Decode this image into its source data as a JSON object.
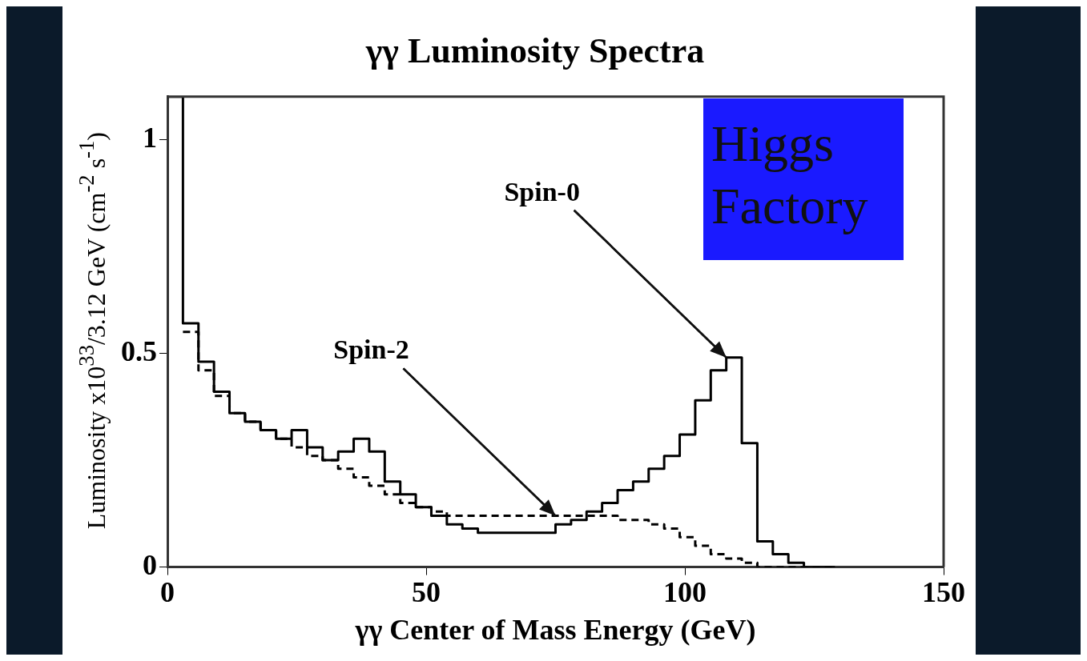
{
  "chart_data": {
    "type": "step",
    "title": "γγ Luminosity Spectra",
    "xlabel": "γγ Center of Mass Energy (GeV)",
    "ylabel": "Luminosity x10$^{33}$/3.12 GeV (cm$^{-2}$ s$^{-1}$)",
    "x": [
      0,
      3,
      6,
      9,
      12,
      15,
      18,
      21,
      24,
      27,
      30,
      33,
      36,
      39,
      42,
      45,
      48,
      51,
      54,
      57,
      60,
      63,
      66,
      69,
      72,
      75,
      78,
      81,
      84,
      87,
      90,
      93,
      96,
      99,
      102,
      105,
      108,
      111,
      114,
      117,
      120,
      123,
      126,
      129
    ],
    "series": [
      {
        "color": "#000000",
        "line_style": "solid",
        "values": [
          1.1,
          0.57,
          0.48,
          0.41,
          0.36,
          0.34,
          0.32,
          0.3,
          0.32,
          0.28,
          0.25,
          0.27,
          0.3,
          0.27,
          0.2,
          0.17,
          0.14,
          0.12,
          0.1,
          0.09,
          0.08,
          0.08,
          0.08,
          0.08,
          0.08,
          0.1,
          0.11,
          0.13,
          0.15,
          0.18,
          0.2,
          0.23,
          0.26,
          0.31,
          0.39,
          0.46,
          0.49,
          0.29,
          0.06,
          0.03,
          0.01,
          0,
          0,
          0
        ]
      },
      {
        "color": "#000000",
        "line_style": "dashed",
        "values": [
          null,
          0.55,
          0.46,
          0.4,
          0.36,
          0.34,
          0.32,
          0.3,
          0.28,
          0.26,
          0.25,
          0.23,
          0.21,
          0.19,
          0.17,
          0.15,
          0.14,
          0.13,
          0.12,
          0.12,
          0.12,
          0.12,
          0.12,
          0.12,
          0.12,
          0.12,
          0.12,
          0.12,
          0.12,
          0.11,
          0.11,
          0.1,
          0.09,
          0.07,
          0.05,
          0.03,
          0.02,
          0.01,
          0,
          0,
          0,
          0,
          0,
          0
        ]
      }
    ],
    "xlim": [
      0,
      150
    ],
    "xticks": [
      0,
      50,
      100,
      150
    ],
    "ylim": [
      0,
      1.1
    ],
    "yticks": [
      0,
      0.5,
      1
    ],
    "grid": false,
    "legend": false,
    "marker": "none",
    "annotations": [
      {
        "text": "Spin-0",
        "x": 108,
        "y": 0.49
      },
      {
        "text": "Spin-2",
        "x": 75,
        "y": 0.12
      },
      "Higgs Factory"
    ]
  }
}
